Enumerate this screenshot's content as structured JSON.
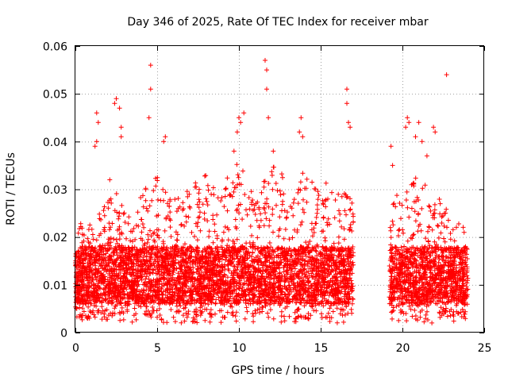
{
  "chart_data": {
    "type": "scatter",
    "title": "Day 346 of 2025, Rate Of TEC Index for receiver mbar",
    "xlabel": "GPS time / hours",
    "ylabel": "ROTI / TECUs",
    "xlim": [
      0,
      25
    ],
    "ylim": [
      0,
      0.06
    ],
    "xticks": [
      "0",
      "5",
      "10",
      "15",
      "20",
      "25"
    ],
    "yticks": [
      "0",
      "0.01",
      "0.02",
      "0.03",
      "0.04",
      "0.05",
      "0.06"
    ],
    "grid": true,
    "marker": "+",
    "color": "#ff0000",
    "series": [
      {
        "segments": [
          {
            "x_start": 0.0,
            "x_end": 17.0
          },
          {
            "x_start": 19.2,
            "x_end": 24.0
          }
        ],
        "typical_range": [
          0.003,
          0.025
        ],
        "envelope": [
          [
            0.0,
            0.021
          ],
          [
            0.5,
            0.024
          ],
          [
            1.0,
            0.023
          ],
          [
            1.5,
            0.026
          ],
          [
            2.0,
            0.028
          ],
          [
            2.5,
            0.03
          ],
          [
            3.0,
            0.027
          ],
          [
            3.5,
            0.026
          ],
          [
            4.0,
            0.029
          ],
          [
            4.5,
            0.031
          ],
          [
            5.0,
            0.033
          ],
          [
            5.5,
            0.03
          ],
          [
            6.0,
            0.028
          ],
          [
            6.5,
            0.03
          ],
          [
            7.0,
            0.031
          ],
          [
            7.5,
            0.033
          ],
          [
            8.0,
            0.034
          ],
          [
            8.5,
            0.03
          ],
          [
            9.0,
            0.031
          ],
          [
            9.5,
            0.034
          ],
          [
            10.0,
            0.037
          ],
          [
            10.5,
            0.031
          ],
          [
            11.0,
            0.03
          ],
          [
            11.5,
            0.033
          ],
          [
            12.0,
            0.035
          ],
          [
            12.5,
            0.034
          ],
          [
            13.0,
            0.031
          ],
          [
            13.5,
            0.033
          ],
          [
            14.0,
            0.035
          ],
          [
            14.5,
            0.032
          ],
          [
            15.0,
            0.034
          ],
          [
            15.5,
            0.031
          ],
          [
            16.0,
            0.029
          ],
          [
            16.5,
            0.03
          ],
          [
            17.0,
            0.028
          ],
          [
            19.2,
            0.03
          ],
          [
            19.5,
            0.028
          ],
          [
            20.0,
            0.031
          ],
          [
            20.5,
            0.032
          ],
          [
            21.0,
            0.033
          ],
          [
            21.5,
            0.031
          ],
          [
            22.0,
            0.03
          ],
          [
            22.5,
            0.027
          ],
          [
            23.0,
            0.025
          ],
          [
            23.5,
            0.023
          ],
          [
            24.0,
            0.022
          ]
        ],
        "outliers": [
          [
            1.2,
            0.039
          ],
          [
            1.3,
            0.04
          ],
          [
            1.3,
            0.046
          ],
          [
            1.4,
            0.044
          ],
          [
            2.1,
            0.032
          ],
          [
            2.4,
            0.048
          ],
          [
            2.5,
            0.049
          ],
          [
            2.7,
            0.047
          ],
          [
            2.8,
            0.043
          ],
          [
            2.8,
            0.041
          ],
          [
            4.5,
            0.045
          ],
          [
            4.6,
            0.051
          ],
          [
            4.6,
            0.056
          ],
          [
            5.4,
            0.04
          ],
          [
            5.5,
            0.041
          ],
          [
            9.7,
            0.038
          ],
          [
            9.9,
            0.042
          ],
          [
            10.0,
            0.045
          ],
          [
            10.1,
            0.044
          ],
          [
            10.3,
            0.046
          ],
          [
            11.6,
            0.057
          ],
          [
            11.7,
            0.055
          ],
          [
            11.7,
            0.051
          ],
          [
            11.8,
            0.045
          ],
          [
            12.1,
            0.038
          ],
          [
            13.7,
            0.042
          ],
          [
            13.8,
            0.045
          ],
          [
            13.9,
            0.041
          ],
          [
            16.6,
            0.048
          ],
          [
            16.6,
            0.051
          ],
          [
            16.7,
            0.044
          ],
          [
            16.8,
            0.043
          ],
          [
            19.3,
            0.039
          ],
          [
            19.4,
            0.035
          ],
          [
            20.2,
            0.043
          ],
          [
            20.3,
            0.045
          ],
          [
            20.4,
            0.044
          ],
          [
            20.8,
            0.041
          ],
          [
            21.0,
            0.044
          ],
          [
            21.2,
            0.04
          ],
          [
            21.5,
            0.037
          ],
          [
            21.9,
            0.043
          ],
          [
            22.0,
            0.042
          ],
          [
            22.7,
            0.054
          ]
        ]
      }
    ]
  }
}
